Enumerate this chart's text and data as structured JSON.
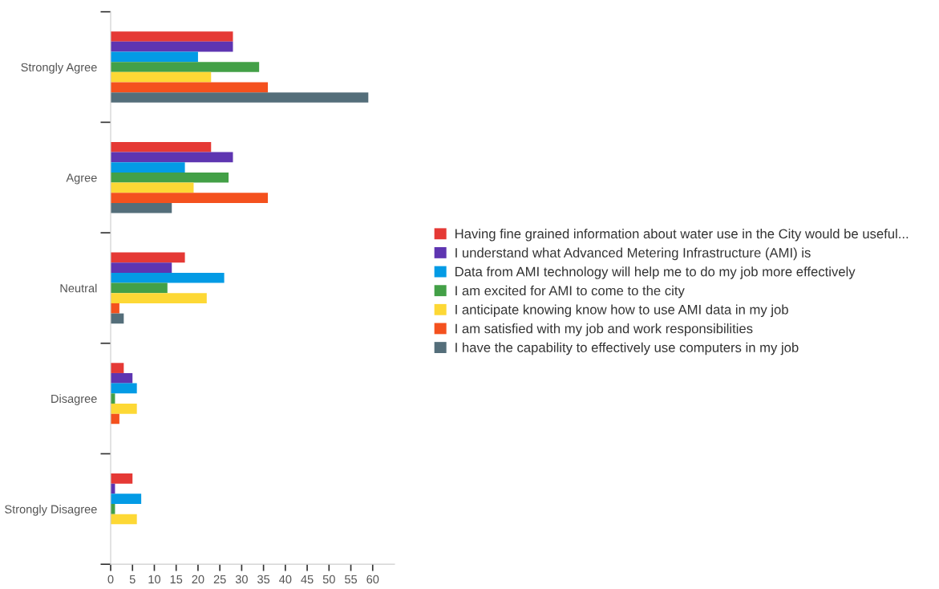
{
  "chart_data": {
    "type": "bar",
    "orientation": "horizontal",
    "categories": [
      "Strongly Agree",
      "Agree",
      "Neutral",
      "Disagree",
      "Strongly Disagree"
    ],
    "series": [
      {
        "name": "Having fine grained information about water use in the City would be useful...",
        "color": "#e53935",
        "values": [
          28,
          23,
          17,
          3,
          5
        ]
      },
      {
        "name": "I understand what Advanced Metering Infrastructure (AMI) is",
        "color": "#5e35b1",
        "values": [
          28,
          28,
          14,
          5,
          1
        ]
      },
      {
        "name": "Data from AMI technology will help me to do my job more effectively",
        "color": "#039be5",
        "values": [
          20,
          17,
          26,
          6,
          7
        ]
      },
      {
        "name": "I am excited for AMI to come to the city",
        "color": "#43a047",
        "values": [
          34,
          27,
          13,
          1,
          1
        ]
      },
      {
        "name": "I anticipate knowing know how to use AMI data in my job",
        "color": "#fdd835",
        "values": [
          23,
          19,
          22,
          6,
          6
        ]
      },
      {
        "name": "I am satisfied with my job and work responsibilities",
        "color": "#f4511e",
        "values": [
          36,
          36,
          2,
          2,
          0
        ]
      },
      {
        "name": "I have the capability to effectively use computers in my job",
        "color": "#546e7a",
        "values": [
          59,
          14,
          3,
          0,
          0
        ]
      }
    ],
    "xlim": [
      0,
      65
    ],
    "xticks": [
      0,
      5,
      10,
      15,
      20,
      25,
      30,
      35,
      40,
      45,
      50,
      55,
      60
    ],
    "legend": "right",
    "grid": false
  }
}
